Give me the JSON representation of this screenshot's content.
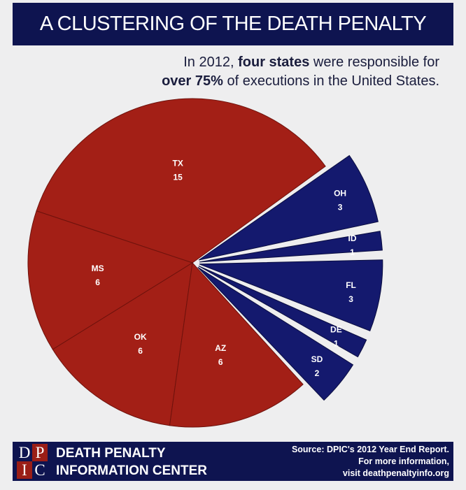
{
  "title": "A CLUSTERING OF THE DEATH PENALTY",
  "subtitle": {
    "line1_pre": "In 2012, ",
    "line1_bold": "four states",
    "line1_post": " were responsible for",
    "line2_bold": "over 75%",
    "line2_post": " of executions in the United States."
  },
  "chart_data": {
    "type": "pie",
    "title": "A CLUSTERING OF THE DEATH PENALTY",
    "slices": [
      {
        "label": "TX",
        "value": 15,
        "group": "top4"
      },
      {
        "label": "MS",
        "value": 6,
        "group": "top4"
      },
      {
        "label": "OK",
        "value": 6,
        "group": "top4"
      },
      {
        "label": "AZ",
        "value": 6,
        "group": "top4"
      },
      {
        "label": "SD",
        "value": 2,
        "group": "other"
      },
      {
        "label": "DE",
        "value": 1,
        "group": "other"
      },
      {
        "label": "FL",
        "value": 3,
        "group": "other"
      },
      {
        "label": "ID",
        "value": 1,
        "group": "other"
      },
      {
        "label": "OH",
        "value": 3,
        "group": "other"
      }
    ],
    "colors": {
      "top4": "#a31f16",
      "other": "#14196e"
    }
  },
  "footer": {
    "logo": [
      "D",
      "P",
      "I",
      "C"
    ],
    "org_line1": "DEATH PENALTY",
    "org_line2": "INFORMATION CENTER",
    "source_line1": "Source: DPIC's 2012 Year End Report.",
    "source_line2": "For more information,",
    "source_line3": "visit deathpenaltyinfo.org"
  }
}
